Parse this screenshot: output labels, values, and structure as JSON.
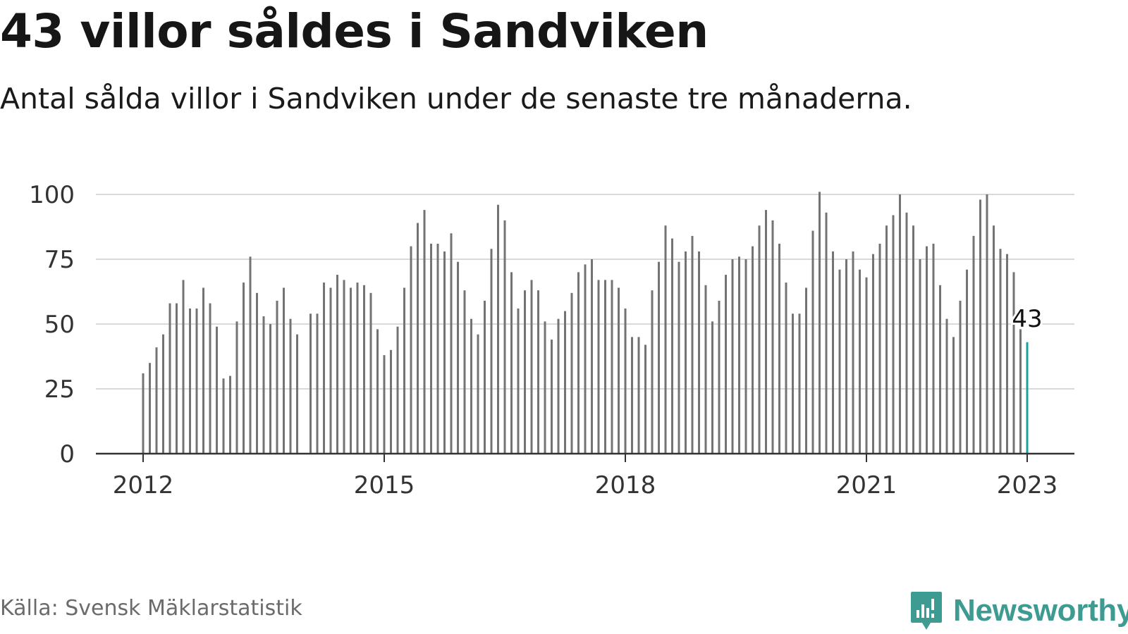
{
  "header": {
    "title": "43 villor såldes i Sandviken",
    "subtitle": "Antal sålda villor i Sandviken under de senaste tre månaderna."
  },
  "footer": {
    "source": "Källa: Svensk Mäklarstatistik",
    "brand": "Newsworthy"
  },
  "colors": {
    "bar": "#737373",
    "highlight": "#1aa39a",
    "grid": "#d9d9d9",
    "axis": "#333333",
    "brand": "#3d9b91"
  },
  "chart_data": {
    "type": "bar",
    "title": "43 villor såldes i Sandviken",
    "subtitle": "Antal sålda villor i Sandviken under de senaste tre månaderna.",
    "xlabel": "",
    "ylabel": "",
    "ylim": [
      0,
      100
    ],
    "yticks": [
      0,
      25,
      50,
      75,
      100
    ],
    "xticks": [
      "2012",
      "2015",
      "2018",
      "2021",
      "2023"
    ],
    "grid": true,
    "period": "rolling 3-month total, monthly",
    "start": "2012-01",
    "end": "2023-01",
    "values": [
      31,
      35,
      41,
      46,
      58,
      58,
      67,
      56,
      56,
      64,
      58,
      49,
      29,
      30,
      51,
      66,
      76,
      62,
      53,
      50,
      59,
      64,
      52,
      46,
      null,
      54,
      54,
      66,
      64,
      69,
      67,
      64,
      66,
      65,
      62,
      48,
      38,
      40,
      49,
      64,
      80,
      89,
      94,
      81,
      81,
      78,
      85,
      74,
      63,
      52,
      46,
      59,
      79,
      96,
      90,
      70,
      56,
      63,
      67,
      63,
      51,
      44,
      52,
      55,
      62,
      70,
      73,
      75,
      67,
      67,
      67,
      64,
      56,
      45,
      45,
      42,
      63,
      74,
      88,
      83,
      74,
      78,
      84,
      78,
      65,
      51,
      59,
      69,
      75,
      76,
      75,
      80,
      88,
      94,
      90,
      81,
      66,
      54,
      54,
      64,
      86,
      101,
      93,
      78,
      71,
      75,
      78,
      71,
      68,
      77,
      81,
      88,
      92,
      100,
      93,
      88,
      75,
      80,
      81,
      65,
      52,
      45,
      59,
      71,
      84,
      98,
      100,
      88,
      79,
      77,
      70,
      48,
      43
    ],
    "highlight": {
      "value": 43,
      "label": "43",
      "index": 132
    }
  }
}
